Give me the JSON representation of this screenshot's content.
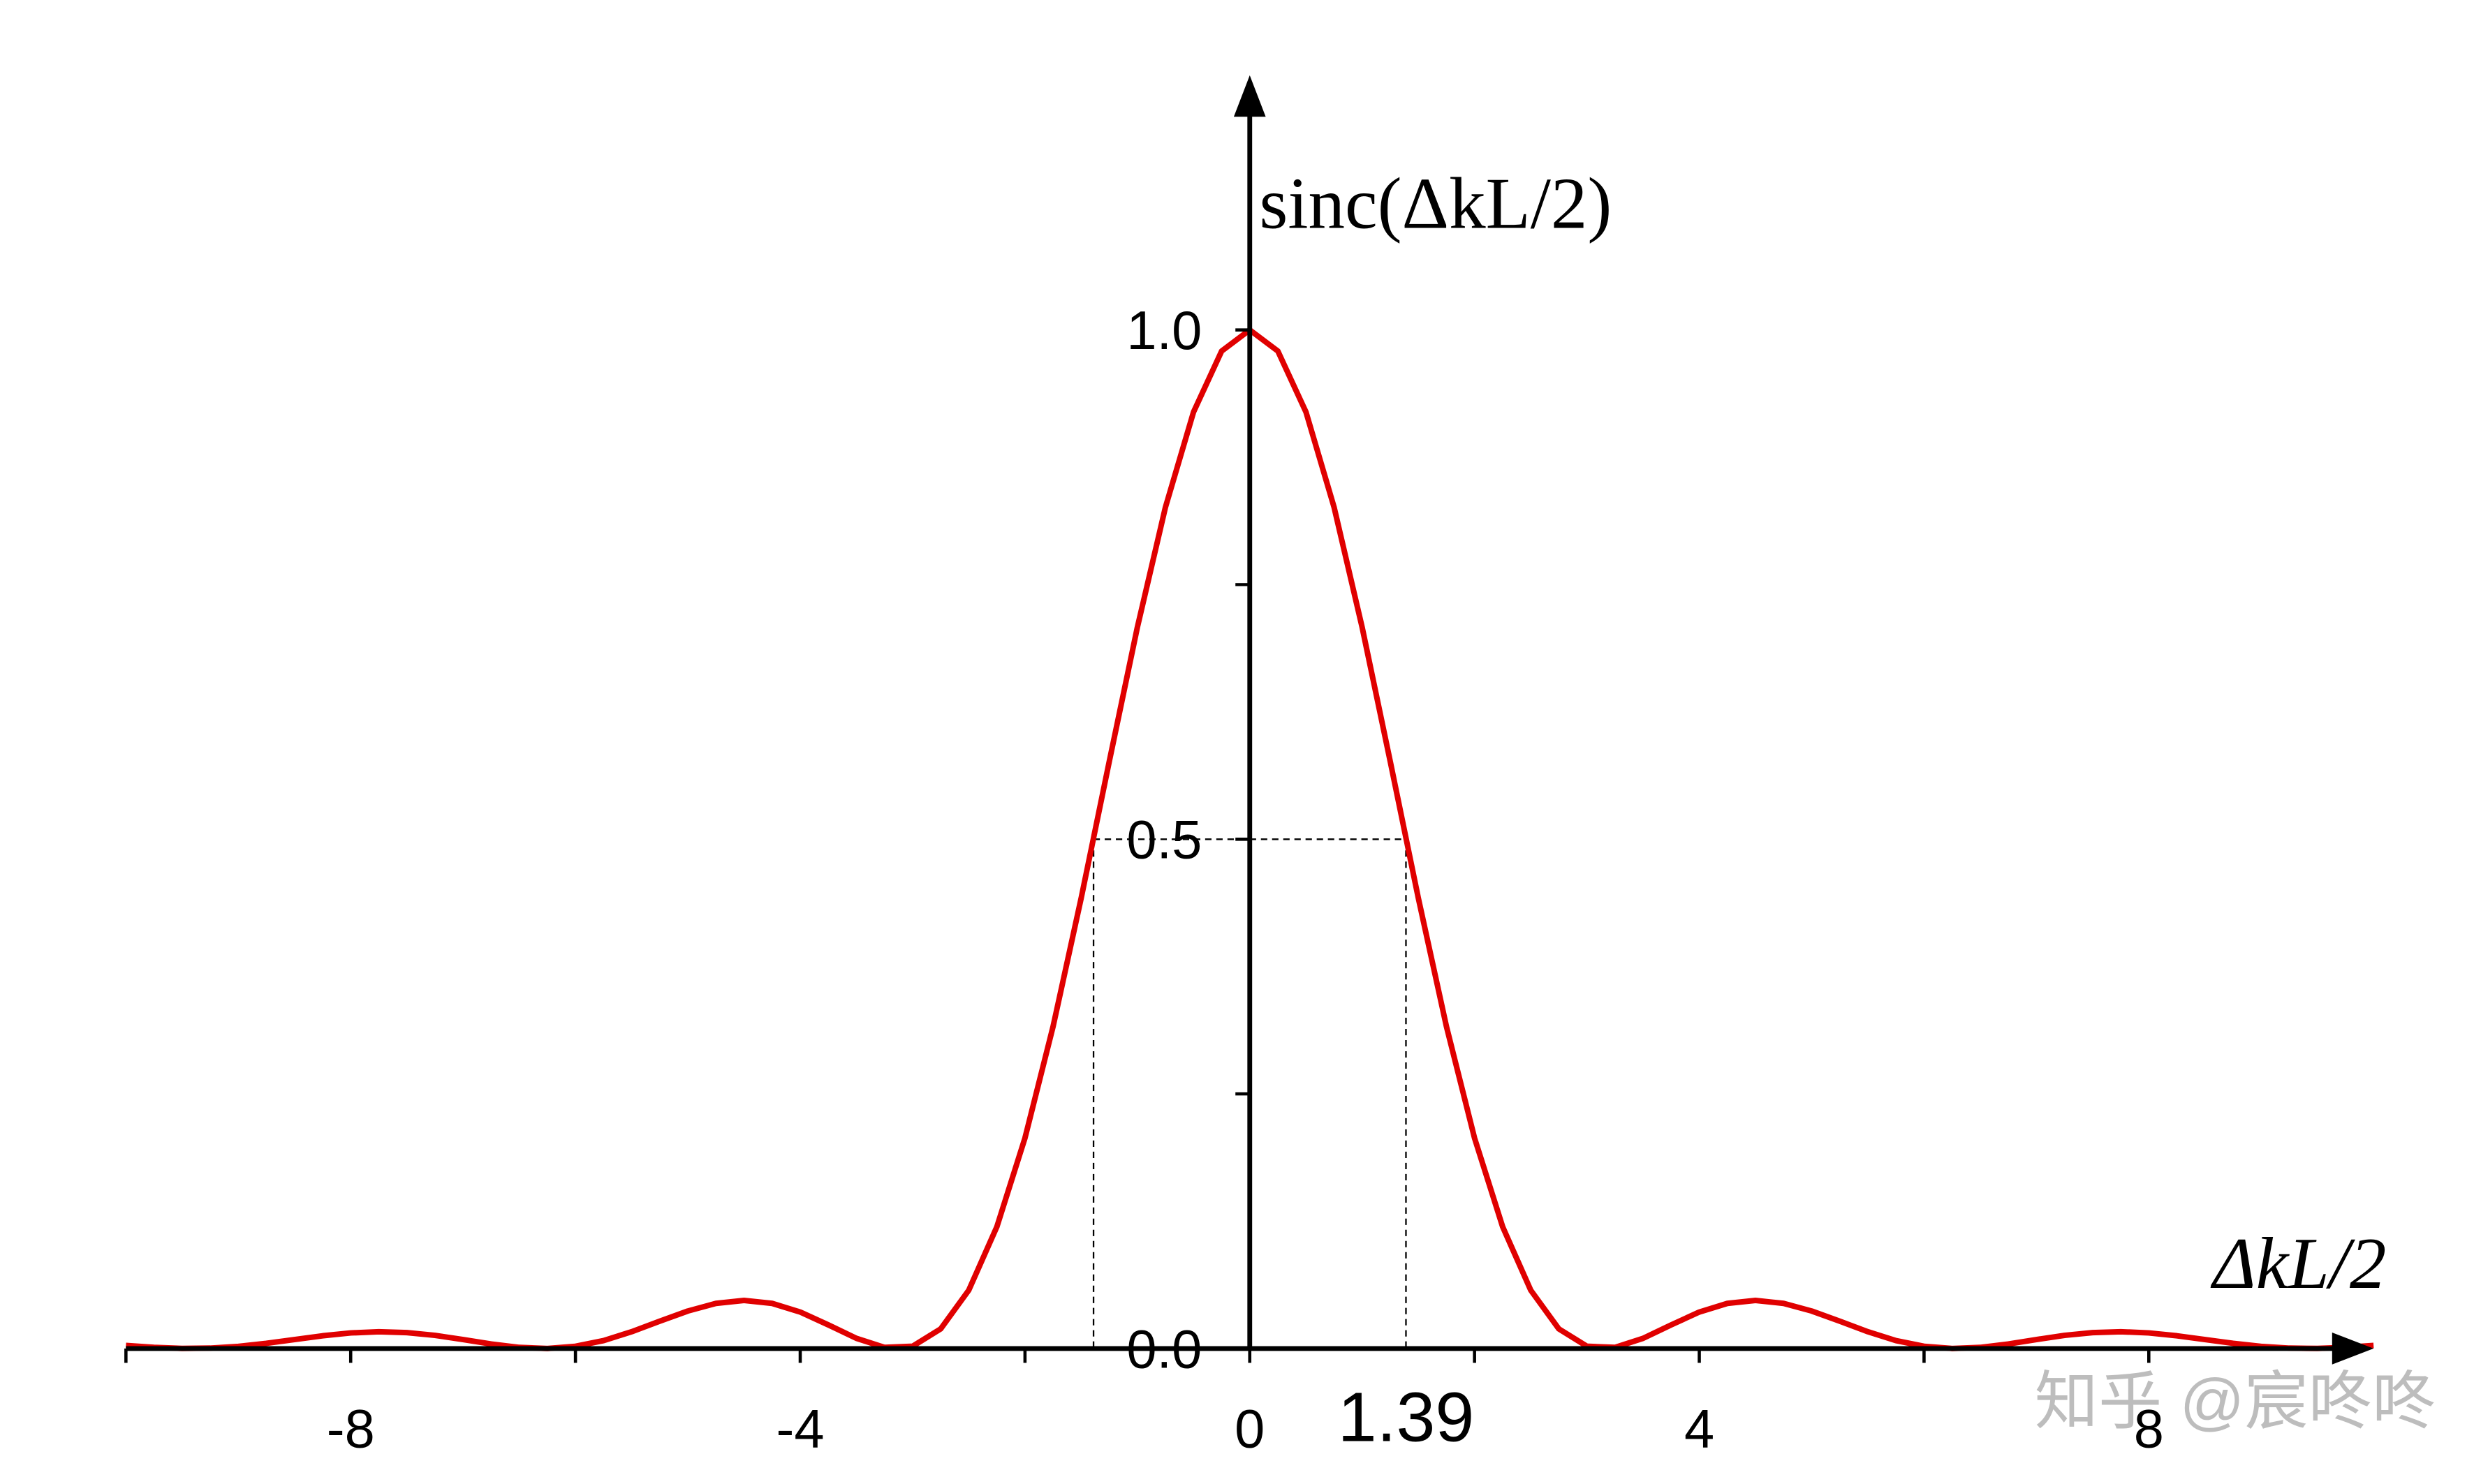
{
  "chart_data": {
    "type": "line",
    "ylabel": "sinc(ΔkL/2)",
    "xlabel": "ΔkL/2",
    "watermark": "知乎 @宸咚咚",
    "color": "#e00000",
    "x": [
      -10,
      -9.75,
      -9.5,
      -9.25,
      -9,
      -8.75,
      -8.5,
      -8.25,
      -8,
      -7.75,
      -7.5,
      -7.25,
      -7,
      -6.75,
      -6.5,
      -6.25,
      -6,
      -5.75,
      -5.5,
      -5.25,
      -5,
      -4.75,
      -4.5,
      -4.25,
      -4,
      -3.75,
      -3.5,
      -3.25,
      -3,
      -2.75,
      -2.5,
      -2.25,
      -2,
      -1.75,
      -1.5,
      -1.25,
      -1,
      -0.75,
      -0.5,
      -0.25,
      0,
      0.25,
      0.5,
      0.75,
      1,
      1.25,
      1.5,
      1.75,
      2,
      2.25,
      2.5,
      2.75,
      3,
      3.25,
      3.5,
      3.75,
      4,
      4.25,
      4.5,
      4.75,
      5,
      5.25,
      5.5,
      5.75,
      6,
      6.25,
      6.5,
      6.75,
      7,
      7.25,
      7.5,
      7.75,
      8,
      8.25,
      8.5,
      8.75,
      9,
      9.25,
      9.5,
      9.75,
      10
    ],
    "values": [
      0.003,
      0.0011,
      0.0001,
      0.0004,
      0.0021,
      0.0051,
      0.0088,
      0.0125,
      0.0153,
      0.0165,
      0.0156,
      0.0129,
      0.0088,
      0.0044,
      0.0011,
      3e-05,
      0.0022,
      0.0078,
      0.0165,
      0.0268,
      0.0368,
      0.0443,
      0.0472,
      0.0443,
      0.0358,
      0.0232,
      0.01,
      0.0011,
      0.0022,
      0.0193,
      0.0573,
      0.1196,
      0.2067,
      0.3162,
      0.4422,
      0.5764,
      0.7081,
      0.8261,
      0.9195,
      0.9793,
      1,
      0.9793,
      0.9195,
      0.8261,
      0.7081,
      0.5764,
      0.4422,
      0.3162,
      0.2067,
      0.1196,
      0.0573,
      0.0193,
      0.0022,
      0.0011,
      0.01,
      0.0232,
      0.0358,
      0.0443,
      0.0472,
      0.0443,
      0.0368,
      0.0268,
      0.0165,
      0.0078,
      0.0022,
      3e-05,
      0.0011,
      0.0044,
      0.0088,
      0.0129,
      0.0156,
      0.0165,
      0.0153,
      0.0125,
      0.0088,
      0.0051,
      0.0021,
      0.0004,
      0.0001,
      0.0011,
      0.003
    ],
    "xlim": [
      -10,
      10
    ],
    "ylim": [
      0,
      1.25
    ],
    "xticks": [
      -8,
      -4,
      0,
      4,
      8
    ],
    "xminorticks": [
      -10,
      -6,
      -2,
      2,
      6
    ],
    "yticks": [
      {
        "value": 0,
        "label": "0.0"
      },
      {
        "value": 0.5,
        "label": "0.5"
      },
      {
        "value": 1,
        "label": "1.0"
      }
    ],
    "yminorticks": [
      0.25,
      0.75
    ],
    "half_width": 1.39,
    "half_level": 0.5
  }
}
